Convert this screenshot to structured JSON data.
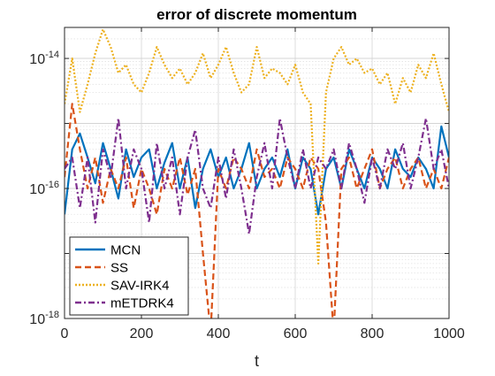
{
  "chart_data": {
    "type": "line",
    "title": "error of discrete momentum",
    "xlabel": "t",
    "ylabel": "",
    "xlim": [
      0,
      1000
    ],
    "ylim": [
      1e-18,
      3e-14
    ],
    "yscale": "log",
    "grid": true,
    "legend_position": "bottom-left",
    "x_ticks": [
      {
        "value": 0,
        "label": "0"
      },
      {
        "value": 200,
        "label": "200"
      },
      {
        "value": 400,
        "label": "400"
      },
      {
        "value": 600,
        "label": "600"
      },
      {
        "value": 800,
        "label": "800"
      },
      {
        "value": 1000,
        "label": "1000"
      }
    ],
    "y_ticks": [
      {
        "value": 1e-18,
        "base": "10",
        "exp": "-18"
      },
      {
        "value": 1e-16,
        "base": "10",
        "exp": "-16"
      },
      {
        "value": 1e-14,
        "base": "10",
        "exp": "-14"
      }
    ],
    "series": [
      {
        "name": "MCN",
        "color": "#0072BD",
        "dash": "solid",
        "x": [
          0,
          20,
          40,
          60,
          80,
          100,
          120,
          140,
          160,
          180,
          200,
          220,
          240,
          260,
          280,
          300,
          320,
          340,
          360,
          380,
          400,
          420,
          440,
          460,
          480,
          500,
          520,
          540,
          560,
          580,
          600,
          620,
          640,
          660,
          680,
          700,
          720,
          740,
          760,
          780,
          800,
          820,
          840,
          860,
          880,
          900,
          920,
          940,
          960,
          980,
          1000
        ],
        "y": [
          4e-17,
          4e-16,
          7e-16,
          3e-16,
          1.2e-16,
          5e-16,
          2e-16,
          7e-17,
          4e-16,
          1.5e-16,
          3e-16,
          4e-16,
          1e-16,
          2.5e-16,
          5e-16,
          1e-16,
          3e-16,
          5e-17,
          2e-16,
          4e-16,
          1.5e-16,
          3e-16,
          1e-16,
          2e-16,
          5e-16,
          1e-16,
          2e-16,
          3e-16,
          1.5e-16,
          4e-16,
          1e-16,
          3e-16,
          2e-16,
          4e-17,
          2e-16,
          3e-16,
          1e-16,
          4e-16,
          2e-16,
          1e-16,
          3e-16,
          2e-16,
          1e-16,
          4e-16,
          2e-16,
          1.5e-16,
          3e-16,
          2e-16,
          1e-16,
          9e-16,
          3e-16
        ]
      },
      {
        "name": "SS",
        "color": "#D95319",
        "dash": "dashed",
        "x": [
          0,
          20,
          40,
          60,
          80,
          100,
          120,
          140,
          160,
          180,
          200,
          220,
          240,
          260,
          280,
          300,
          320,
          340,
          360,
          380,
          400,
          420,
          440,
          460,
          480,
          500,
          520,
          540,
          560,
          580,
          600,
          620,
          640,
          660,
          680,
          700,
          720,
          740,
          760,
          780,
          800,
          820,
          840,
          860,
          880,
          900,
          920,
          940,
          960,
          980,
          1000
        ],
        "y": [
          1.5e-16,
          2e-15,
          4e-16,
          1e-16,
          3e-16,
          6e-17,
          2e-16,
          1e-16,
          3e-16,
          5e-17,
          2e-16,
          1e-16,
          4e-17,
          2e-16,
          1e-16,
          3e-16,
          8e-17,
          2e-16,
          1e-17,
          6e-19,
          2e-16,
          1e-16,
          3e-16,
          2e-16,
          1e-16,
          4e-16,
          1.5e-16,
          2e-16,
          1e-16,
          3e-16,
          2e-16,
          1e-16,
          3e-16,
          2e-16,
          3e-17,
          6e-19,
          2e-16,
          3e-16,
          1e-16,
          2e-16,
          4e-16,
          1e-16,
          2e-16,
          3e-16,
          1e-16,
          2e-16,
          3e-16,
          1e-16,
          2e-16,
          1e-16,
          3e-16
        ]
      },
      {
        "name": "SAV-IRK4",
        "color": "#EDB120",
        "dash": "dotted",
        "x": [
          0,
          20,
          40,
          60,
          80,
          100,
          120,
          140,
          160,
          180,
          200,
          220,
          240,
          260,
          280,
          300,
          320,
          340,
          360,
          380,
          400,
          420,
          440,
          460,
          480,
          500,
          520,
          540,
          560,
          580,
          600,
          620,
          640,
          660,
          680,
          700,
          720,
          740,
          760,
          780,
          800,
          820,
          840,
          860,
          880,
          900,
          920,
          940,
          960,
          980,
          1000
        ],
        "y": [
          2e-15,
          1e-14,
          1.5e-15,
          4e-15,
          1.2e-14,
          2.8e-14,
          1.5e-14,
          6e-15,
          8e-15,
          4e-15,
          3e-15,
          6e-15,
          1.5e-14,
          8e-15,
          5e-15,
          7e-15,
          4e-15,
          6e-15,
          1.2e-14,
          5e-15,
          8e-15,
          1.5e-14,
          6e-15,
          3e-15,
          4e-15,
          1.5e-14,
          5e-15,
          7e-15,
          6e-15,
          4e-15,
          8e-15,
          3e-15,
          2e-15,
          7e-18,
          3e-15,
          1e-14,
          1.5e-14,
          8e-15,
          1e-14,
          6e-15,
          7e-15,
          4e-15,
          6e-15,
          2e-15,
          5e-15,
          3e-15,
          8e-15,
          5e-15,
          1.2e-14,
          4e-15,
          1.5e-15
        ]
      },
      {
        "name": "mETDRK4",
        "color": "#7E2F8E",
        "dash": "dashdot",
        "x": [
          0,
          20,
          40,
          60,
          80,
          100,
          120,
          140,
          160,
          180,
          200,
          220,
          240,
          260,
          280,
          300,
          320,
          340,
          360,
          380,
          400,
          420,
          440,
          460,
          480,
          500,
          520,
          540,
          560,
          580,
          600,
          620,
          640,
          660,
          680,
          700,
          720,
          740,
          760,
          780,
          800,
          820,
          840,
          860,
          880,
          900,
          920,
          940,
          960,
          980,
          1000
        ],
        "y": [
          2e-16,
          3e-16,
          5e-17,
          3e-16,
          3e-17,
          4e-16,
          1.5e-16,
          1.2e-15,
          1e-16,
          4e-16,
          2e-16,
          3e-17,
          5e-16,
          1e-16,
          3e-16,
          4e-17,
          3e-16,
          8e-16,
          1e-16,
          5e-17,
          3e-16,
          7e-17,
          4e-16,
          1e-16,
          2e-17,
          1.5e-16,
          5e-16,
          1e-16,
          1.2e-15,
          3e-16,
          1e-16,
          4e-16,
          1e-16,
          3e-16,
          2e-16,
          4e-16,
          1e-16,
          5e-16,
          2e-16,
          6e-17,
          3e-16,
          1e-16,
          4e-16,
          2e-16,
          5e-16,
          1e-16,
          3e-16,
          1.2e-15,
          2e-16,
          4e-16,
          1e-16
        ]
      }
    ]
  }
}
